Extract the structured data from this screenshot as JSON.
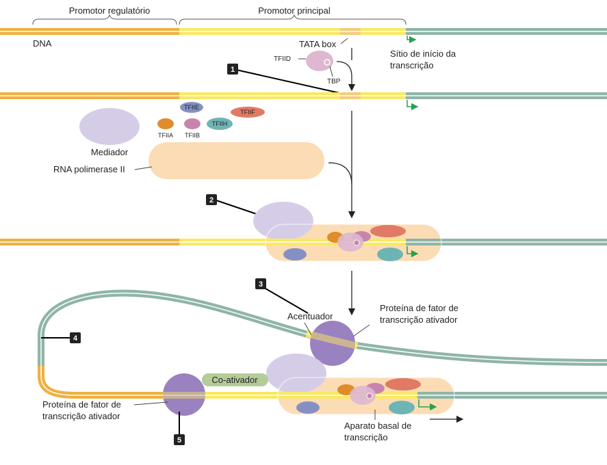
{
  "header": {
    "regulatory_promoter": "Promotor regulatório",
    "core_promoter": "Promotor principal"
  },
  "labels": {
    "dna": "DNA",
    "tata_box": "TATA box",
    "tfiid": "TFIID",
    "tbp": "TBP",
    "start_site_line1": "Sítio de início da",
    "start_site_line2": "transcrição",
    "tfiie": "TFIIE",
    "tfiif": "TFIIF",
    "tfiia": "TFIIA",
    "tfiib": "TFIIB",
    "tfiih": "TFIIH",
    "mediator": "Mediador",
    "rna_pol": "RNA polimerase II",
    "enhancer": "Acentuador",
    "activator_top_line1": "Proteína de fator de",
    "activator_top_line2": "transcrição ativador",
    "coactivator": "Co-ativador",
    "activator_left_line1": "Proteína de fator de",
    "activator_left_line2": "transcrição ativador",
    "basal_line1": "Aparato basal de",
    "basal_line2": "transcrição"
  },
  "steps": [
    "1",
    "2",
    "3",
    "4",
    "5"
  ],
  "colors": {
    "regulatory_dna": "#f0b040",
    "core_dna": "#fbe862",
    "gene_dna": "#8fb5a8",
    "tata": "#f5cc7a",
    "pol": "#fcdcb4",
    "mediator": "#d5cde8",
    "tfiid": "#ddb8d0",
    "tfiie": "#8590c2",
    "tfiif": "#e07a64",
    "tfiia": "#e08c2a",
    "tfiib": "#c785ae",
    "tfiih": "#6fb4b4",
    "activator": "#9a82c0",
    "coactivator": "#b4cc98",
    "arrow_green": "#2aa050"
  }
}
